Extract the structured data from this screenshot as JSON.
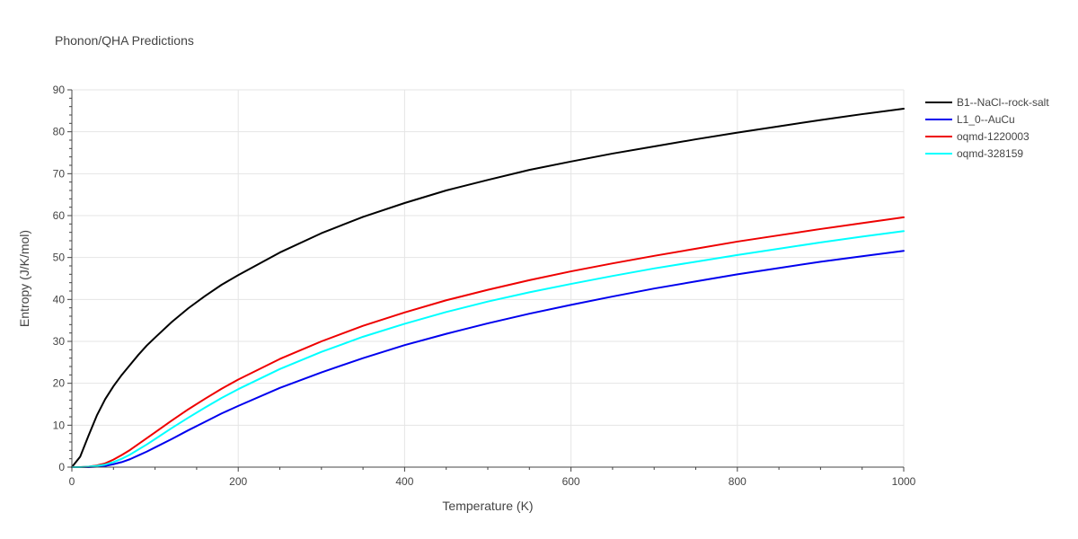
{
  "chart_data": {
    "type": "line",
    "title": "Phonon/QHA Predictions",
    "xlabel": "Temperature (K)",
    "ylabel": "Entropy (J/K/mol)",
    "xlim": [
      0,
      1000
    ],
    "ylim": [
      0,
      90
    ],
    "xticks": [
      0,
      200,
      400,
      600,
      800,
      1000
    ],
    "yticks": [
      0,
      10,
      20,
      30,
      40,
      50,
      60,
      70,
      80,
      90
    ],
    "grid": true,
    "legend_position": "top-right",
    "x": [
      0,
      10,
      20,
      30,
      40,
      50,
      60,
      70,
      80,
      90,
      100,
      120,
      140,
      160,
      180,
      200,
      250,
      300,
      350,
      400,
      450,
      500,
      550,
      600,
      650,
      700,
      750,
      800,
      850,
      900,
      950,
      1000
    ],
    "series": [
      {
        "name": "B1--NaCl--rock-salt",
        "color": "#000000",
        "values": [
          0,
          2.5,
          7.5,
          12.3,
          16.2,
          19.3,
          22.0,
          24.4,
          26.8,
          29.0,
          30.9,
          34.6,
          37.9,
          40.8,
          43.5,
          45.8,
          51.2,
          55.8,
          59.7,
          63.0,
          66.0,
          68.5,
          70.9,
          72.9,
          74.8,
          76.5,
          78.2,
          79.8,
          81.3,
          82.8,
          84.2,
          85.5
        ]
      },
      {
        "name": "L1_0--AuCu",
        "color": "#0000ee",
        "values": [
          0,
          0,
          0,
          0.1,
          0.3,
          0.7,
          1.2,
          1.9,
          2.8,
          3.7,
          4.7,
          6.7,
          8.8,
          10.8,
          12.8,
          14.6,
          18.9,
          22.6,
          26.0,
          29.1,
          31.8,
          34.3,
          36.6,
          38.7,
          40.7,
          42.6,
          44.3,
          46.0,
          47.5,
          49.0,
          50.3,
          51.6
        ]
      },
      {
        "name": "oqmd-1220003",
        "color": "#ee0000",
        "values": [
          0,
          0,
          0.1,
          0.4,
          0.9,
          1.8,
          2.9,
          4.1,
          5.5,
          6.9,
          8.3,
          11.1,
          13.8,
          16.3,
          18.7,
          20.9,
          25.8,
          30.0,
          33.7,
          36.9,
          39.8,
          42.3,
          44.6,
          46.7,
          48.6,
          50.4,
          52.1,
          53.8,
          55.3,
          56.8,
          58.2,
          59.6
        ]
      },
      {
        "name": "oqmd-328159",
        "color": "#00ffff",
        "values": [
          0,
          0,
          0.1,
          0.3,
          0.6,
          1.2,
          2.0,
          3.0,
          4.2,
          5.4,
          6.7,
          9.3,
          11.8,
          14.2,
          16.5,
          18.6,
          23.4,
          27.5,
          31.1,
          34.2,
          37.0,
          39.5,
          41.7,
          43.7,
          45.6,
          47.4,
          49.0,
          50.6,
          52.1,
          53.6,
          55.0,
          56.3
        ]
      }
    ]
  }
}
